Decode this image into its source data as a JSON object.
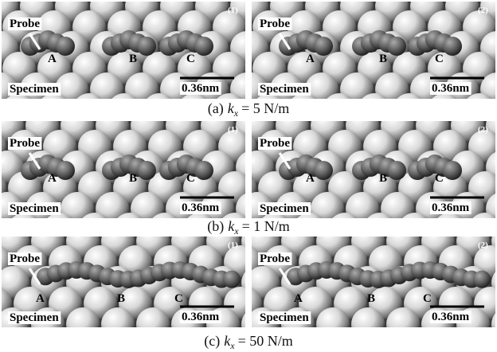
{
  "figure": {
    "rows": [
      {
        "caption": {
          "label": "(a)",
          "symbol": "k",
          "subscript": "x",
          "equation": "= 5 N/m"
        },
        "panels": [
          {
            "number": "(1)",
            "probe": "Probe",
            "specimen": "Specimen",
            "sites": [
              "A",
              "B",
              "C"
            ],
            "scale": "0.36nm"
          },
          {
            "number": "(2)",
            "probe": "Probe",
            "specimen": "Specimen",
            "sites": [
              "A",
              "B",
              "C"
            ],
            "scale": "0.36nm"
          }
        ]
      },
      {
        "caption": {
          "label": "(b)",
          "symbol": "k",
          "subscript": "x",
          "equation": "= 1 N/m"
        },
        "panels": [
          {
            "number": "(1)",
            "probe": "Probe",
            "specimen": "Specimen",
            "sites": [
              "A",
              "B",
              "C"
            ],
            "scale": "0.36nm"
          },
          {
            "number": "(2)",
            "probe": "Probe",
            "specimen": "Specimen",
            "sites": [
              "A",
              "B",
              "C"
            ],
            "scale": "0.36nm"
          }
        ]
      },
      {
        "caption": {
          "label": "(c)",
          "symbol": "k",
          "subscript": "x",
          "equation": "= 50 N/m"
        },
        "panels": [
          {
            "number": "(1)",
            "probe": "Probe",
            "specimen": "Specimen",
            "sites": [
              "A",
              "B",
              "C"
            ],
            "scale": "0.36nm"
          },
          {
            "number": "(2)",
            "probe": "Probe",
            "specimen": "Specimen",
            "sites": [
              "A",
              "B",
              "C"
            ],
            "scale": "0.36nm"
          }
        ]
      }
    ]
  }
}
